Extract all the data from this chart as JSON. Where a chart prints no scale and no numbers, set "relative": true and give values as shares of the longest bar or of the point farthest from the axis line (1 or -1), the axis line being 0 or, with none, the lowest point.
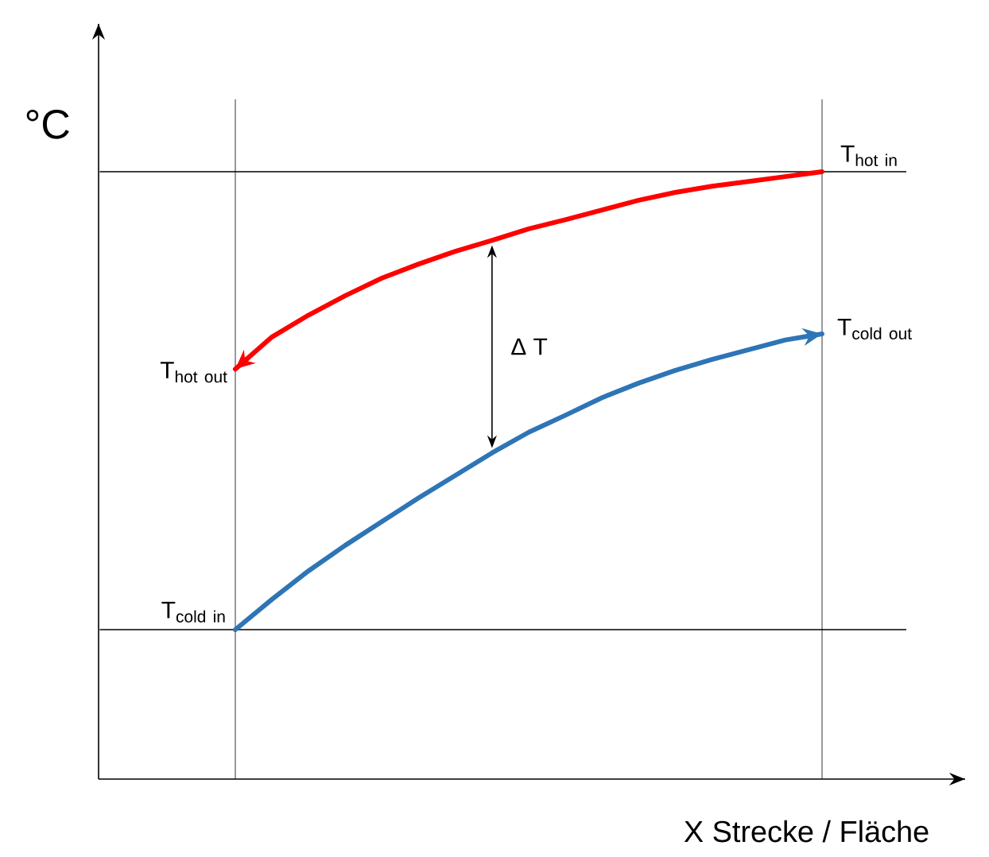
{
  "chart_data": {
    "type": "line",
    "relative": true,
    "categories": [
      null,
      null,
      null,
      null,
      null,
      null,
      null,
      null,
      null,
      null,
      null,
      null,
      null,
      null,
      null,
      null,
      null
    ],
    "series": [
      {
        "color": "#ff0000",
        "values": [
          0.675,
          0.728,
          0.764,
          0.796,
          0.825,
          0.848,
          0.869,
          0.887,
          0.906,
          0.921,
          0.937,
          0.953,
          0.966,
          0.976,
          0.984,
          0.992,
          1
        ]
      },
      {
        "color": "#2e75b6",
        "values": [
          0.246,
          0.296,
          0.343,
          0.385,
          0.424,
          0.463,
          0.5,
          0.537,
          0.571,
          0.599,
          0.628,
          0.652,
          0.673,
          0.691,
          0.707,
          0.723,
          0.733
        ]
      }
    ],
    "xlabel": "X Strecke / Fläche",
    "ylabel": "°C",
    "ref_lines": [
      {
        "axis": "y",
        "value": 1,
        "label": "\\mathrm{T}_{\\mathrm{hot\\ in}}"
      },
      {
        "axis": "y",
        "value": 0.246,
        "label": "\\mathrm{T}_{\\mathrm{cold\\ in}}"
      }
    ],
    "annotations": [
      "\\mathrm{T}_{\\mathrm{hot\\ out}}",
      "\\mathrm{T}_{\\mathrm{cold\\ out}}",
      "Δ T"
    ],
    "marker": "none",
    "line_style": "solid"
  }
}
